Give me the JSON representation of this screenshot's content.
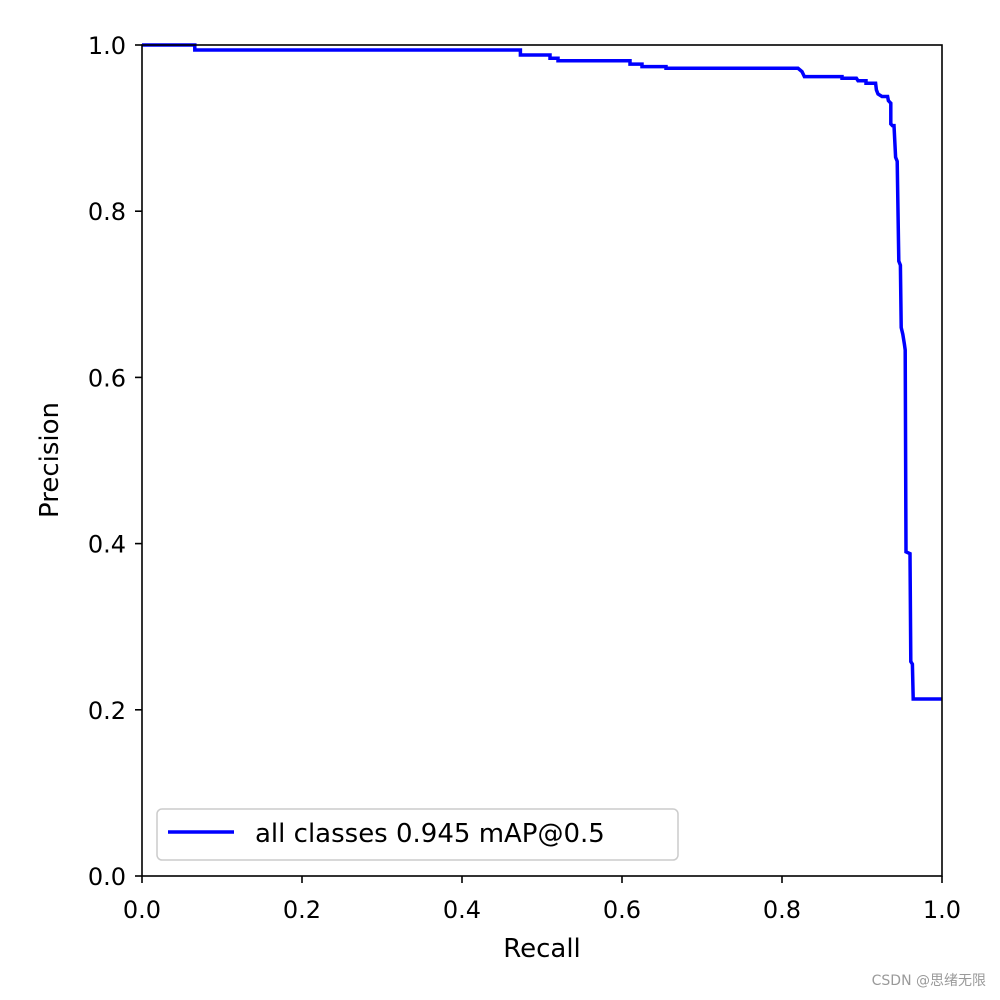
{
  "chart_data": {
    "type": "line",
    "title": "",
    "xlabel": "Recall",
    "ylabel": "Precision",
    "xlim": [
      0.0,
      1.0
    ],
    "ylim": [
      0.0,
      1.0
    ],
    "xticks": [
      "0.0",
      "0.2",
      "0.4",
      "0.6",
      "0.8",
      "1.0"
    ],
    "yticks": [
      "0.0",
      "0.2",
      "0.4",
      "0.6",
      "0.8",
      "1.0"
    ],
    "grid": false,
    "legend_position": "lower-left",
    "series": [
      {
        "name": "all classes 0.945 mAP@0.5",
        "color": "#0000ff",
        "points": [
          [
            0.0,
            1.0
          ],
          [
            0.066,
            1.0
          ],
          [
            0.066,
            0.994
          ],
          [
            0.473,
            0.994
          ],
          [
            0.473,
            0.988
          ],
          [
            0.51,
            0.988
          ],
          [
            0.51,
            0.984
          ],
          [
            0.52,
            0.984
          ],
          [
            0.52,
            0.981
          ],
          [
            0.61,
            0.981
          ],
          [
            0.61,
            0.977
          ],
          [
            0.625,
            0.977
          ],
          [
            0.625,
            0.974
          ],
          [
            0.655,
            0.974
          ],
          [
            0.655,
            0.972
          ],
          [
            0.82,
            0.972
          ],
          [
            0.825,
            0.968
          ],
          [
            0.828,
            0.962
          ],
          [
            0.875,
            0.962
          ],
          [
            0.875,
            0.96
          ],
          [
            0.893,
            0.96
          ],
          [
            0.895,
            0.957
          ],
          [
            0.905,
            0.957
          ],
          [
            0.905,
            0.954
          ],
          [
            0.917,
            0.954
          ],
          [
            0.918,
            0.946
          ],
          [
            0.92,
            0.941
          ],
          [
            0.925,
            0.938
          ],
          [
            0.932,
            0.938
          ],
          [
            0.933,
            0.933
          ],
          [
            0.936,
            0.93
          ],
          [
            0.936,
            0.905
          ],
          [
            0.938,
            0.903
          ],
          [
            0.94,
            0.903
          ],
          [
            0.942,
            0.865
          ],
          [
            0.944,
            0.86
          ],
          [
            0.946,
            0.74
          ],
          [
            0.948,
            0.735
          ],
          [
            0.949,
            0.66
          ],
          [
            0.951,
            0.652
          ],
          [
            0.953,
            0.64
          ],
          [
            0.954,
            0.633
          ],
          [
            0.955,
            0.39
          ],
          [
            0.96,
            0.388
          ],
          [
            0.961,
            0.258
          ],
          [
            0.963,
            0.255
          ],
          [
            0.964,
            0.213
          ],
          [
            1.0,
            0.213
          ]
        ]
      }
    ]
  },
  "watermark": "CSDN @思绪无限"
}
